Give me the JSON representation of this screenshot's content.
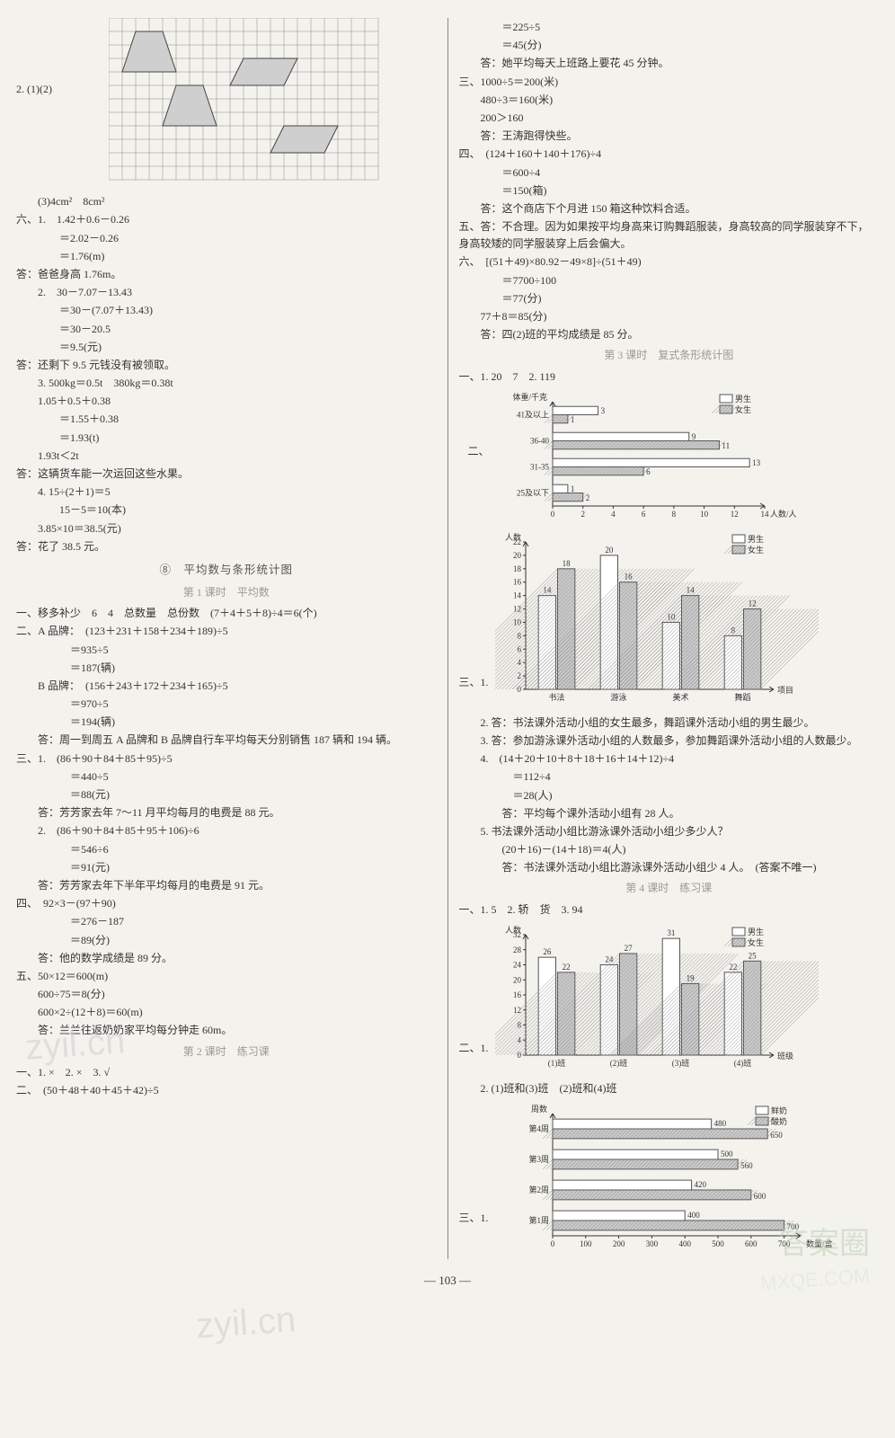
{
  "left": {
    "q2_label": "2. (1)(2)",
    "grid": {
      "cols": 20,
      "rows": 12,
      "cell": 15,
      "stroke": "#8a8a8a",
      "fill": "#cfcfcf",
      "shapes": [
        {
          "type": "poly",
          "pts": [
            [
              2,
              1
            ],
            [
              4,
              1
            ],
            [
              5,
              4
            ],
            [
              1,
              4
            ]
          ]
        },
        {
          "type": "poly",
          "pts": [
            [
              10,
              3
            ],
            [
              14,
              3
            ],
            [
              13,
              5
            ],
            [
              9,
              5
            ]
          ]
        },
        {
          "type": "poly",
          "pts": [
            [
              5,
              5
            ],
            [
              7,
              5
            ],
            [
              8,
              8
            ],
            [
              4,
              8
            ]
          ]
        },
        {
          "type": "poly",
          "pts": [
            [
              13,
              8
            ],
            [
              17,
              8
            ],
            [
              16,
              10
            ],
            [
              12,
              10
            ]
          ]
        }
      ]
    },
    "q3": "(3)4cm²　8cm²",
    "six": [
      "六、1.　1.42＋0.6－0.26",
      "＝2.02－0.26",
      "＝1.76(m)",
      "答：爸爸身高 1.76m。",
      "2.　30－7.07－13.43",
      "＝30－(7.07＋13.43)",
      "＝30－20.5",
      "＝9.5(元)",
      "答：还剩下 9.5 元钱没有被领取。",
      "3. 500kg＝0.5t　380kg＝0.38t",
      "1.05＋0.5＋0.38",
      "＝1.55＋0.38",
      "＝1.93(t)",
      "1.93t＜2t",
      "答：这辆货车能一次运回这些水果。",
      "4. 15÷(2＋1)＝5",
      "15－5＝10(本)",
      "3.85×10＝38.5(元)",
      "答：花了 38.5 元。"
    ],
    "unit_head": "⑧　平均数与条形统计图",
    "lesson1_head": "第 1 课时　平均数",
    "l1": [
      "一、移多补少　6　4　总数量　总份数　(7＋4＋5＋8)÷4＝6(个)",
      "二、A 品牌：　(123＋231＋158＋234＋189)÷5",
      "＝935÷5",
      "＝187(辆)",
      "B 品牌：　(156＋243＋172＋234＋165)÷5",
      "＝970÷5",
      "＝194(辆)",
      "答：周一到周五 A 品牌和 B 品牌自行车平均每天分别销售 187 辆和 194 辆。",
      "三、1.　(86＋90＋84＋85＋95)÷5",
      "＝440÷5",
      "＝88(元)",
      "答：芳芳家去年 7～11 月平均每月的电费是 88 元。",
      "2.　(86＋90＋84＋85＋95＋106)÷6",
      "＝546÷6",
      "＝91(元)",
      "答：芳芳家去年下半年平均每月的电费是 91 元。",
      "四、　92×3－(97＋90)",
      "＝276－187",
      "＝89(分)",
      "答：他的数学成绩是 89 分。",
      "五、50×12＝600(m)",
      "600÷75＝8(分)",
      "600×2÷(12＋8)＝60(m)",
      "答：兰兰往返奶奶家平均每分钟走 60m。"
    ],
    "lesson2_head": "第 2 课时　练习课",
    "l2": [
      "一、1. ×　2. ×　3. √",
      "二、　(50＋48＋40＋45＋42)÷5"
    ]
  },
  "right": {
    "top": [
      "＝225÷5",
      "＝45(分)",
      "答：她平均每天上班路上要花 45 分钟。",
      "三、1000÷5＝200(米)",
      "480÷3＝160(米)",
      "200＞160",
      "答：王涛跑得快些。",
      "四、　(124＋160＋140＋176)÷4",
      "＝600÷4",
      "＝150(箱)",
      "答：这个商店下个月进 150 箱这种饮料合适。",
      "五、答：不合理。因为如果按平均身高来订购舞蹈服装，身高较高的同学服装穿不下，身高较矮的同学服装穿上后会偏大。",
      "六、　[(51＋49)×80.92－49×8]÷(51＋49)",
      "＝7700÷100",
      "＝77(分)",
      "77＋8＝85(分)",
      "答：四(2)班的平均成绩是 85 分。"
    ],
    "lesson3_head": "第 3 课时　复式条形统计图",
    "l3_q1": "一、1. 20　7　2. 119",
    "chart_h1": {
      "ylabel": "体重/千克",
      "categories": [
        "25及以下",
        "31-35",
        "36-40",
        "41及以上"
      ],
      "boys": [
        1,
        13,
        9,
        3
      ],
      "girls": [
        2,
        6,
        11,
        1
      ],
      "boy_extra_label": "8",
      "xmax": 14,
      "xtick": 2,
      "xlabel": "人数/人",
      "boy_color": "#ffffff",
      "girl_color": "#c9c9c9",
      "stroke": "#555",
      "legend": [
        "男生",
        "女生"
      ]
    },
    "chart_v1": {
      "ylabel": "人数",
      "categories": [
        "书法",
        "游泳",
        "美术",
        "舞蹈"
      ],
      "boys": [
        14,
        20,
        10,
        8
      ],
      "girls": [
        18,
        16,
        14,
        12
      ],
      "ymax": 22,
      "ytick": 2,
      "xlabel": "项目",
      "boy_color": "#ffffff",
      "girl_color": "#c9c9c9",
      "stroke": "#555",
      "legend": [
        "男生",
        "女生"
      ],
      "prefix": "三、1."
    },
    "l3_rest": [
      "2. 答：书法课外活动小组的女生最多，舞蹈课外活动小组的男生最少。",
      "3. 答：参加游泳课外活动小组的人数最多，参加舞蹈课外活动小组的人数最少。",
      "4.　(14＋20＋10＋8＋18＋16＋14＋12)÷4",
      "＝112÷4",
      "＝28(人)",
      "答：平均每个课外活动小组有 28 人。",
      "5. 书法课外活动小组比游泳课外活动小组少多少人？",
      "(20＋16)－(14＋18)＝4(人)",
      "答：书法课外活动小组比游泳课外活动小组少 4 人。　(答案不唯一)"
    ],
    "lesson4_head": "第 4 课时　练习课",
    "l4_q1": "一、1. 5　2. 轿　货　3. 94",
    "chart_v2": {
      "ylabel": "人数",
      "categories": [
        "(1)班",
        "(2)班",
        "(3)班",
        "(4)班"
      ],
      "boys": [
        26,
        24,
        31,
        22
      ],
      "girls": [
        22,
        27,
        19,
        25
      ],
      "ymax": 32,
      "ytick": 4,
      "xlabel": "班级",
      "boy_color": "#ffffff",
      "girl_color": "#c9c9c9",
      "stroke": "#555",
      "legend": [
        "男生",
        "女生"
      ],
      "prefix": "二、1."
    },
    "l4_q2": "2. (1)班和(3)班　(2)班和(4)班",
    "chart_h2": {
      "ylabel": "周数",
      "categories": [
        "第1周",
        "第2周",
        "第3周",
        "第4周"
      ],
      "milk": [
        400,
        420,
        500,
        480
      ],
      "yogurt": [
        700,
        600,
        560,
        650
      ],
      "xmax": 750,
      "xtick": 100,
      "xlabel": "数量/盒",
      "boy_color": "#ffffff",
      "girl_color": "#c9c9c9",
      "stroke": "#555",
      "legend": [
        "鲜奶",
        "酸奶"
      ],
      "prefix": "三、1."
    }
  },
  "pagenum": "103",
  "watermarks": {
    "w1": "zyil.cn",
    "w2": "答案圈",
    "w3": "MXQE.COM"
  }
}
